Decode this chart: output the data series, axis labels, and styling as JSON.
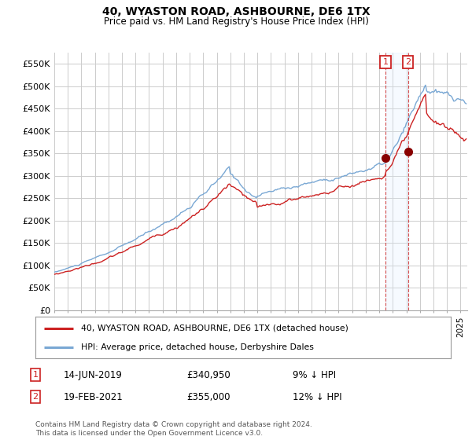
{
  "title": "40, WYASTON ROAD, ASHBOURNE, DE6 1TX",
  "subtitle": "Price paid vs. HM Land Registry's House Price Index (HPI)",
  "ylim": [
    0,
    575000
  ],
  "yticks": [
    0,
    50000,
    100000,
    150000,
    200000,
    250000,
    300000,
    350000,
    400000,
    450000,
    500000,
    550000
  ],
  "ytick_labels": [
    "£0",
    "£50K",
    "£100K",
    "£150K",
    "£200K",
    "£250K",
    "£300K",
    "£350K",
    "£400K",
    "£450K",
    "£500K",
    "£550K"
  ],
  "hpi_color": "#7aa8d4",
  "price_color": "#cc2222",
  "annotation_color": "#cc2222",
  "background_color": "#ffffff",
  "grid_color": "#cccccc",
  "transaction1": {
    "date": "14-JUN-2019",
    "price": 340950,
    "pct": "9%",
    "direction": "↓",
    "label": "1"
  },
  "transaction2": {
    "date": "19-FEB-2021",
    "price": 355000,
    "pct": "12%",
    "direction": "↓",
    "label": "2"
  },
  "legend_line1": "40, WYASTON ROAD, ASHBOURNE, DE6 1TX (detached house)",
  "legend_line2": "HPI: Average price, detached house, Derbyshire Dales",
  "footer": "Contains HM Land Registry data © Crown copyright and database right 2024.\nThis data is licensed under the Open Government Licence v3.0.",
  "ann1_x": 2019.46,
  "ann1_y": 340950,
  "ann2_x": 2021.12,
  "ann2_y": 355000,
  "xlim": [
    1995,
    2025.5
  ],
  "xticks": [
    1995,
    1996,
    1997,
    1998,
    1999,
    2000,
    2001,
    2002,
    2003,
    2004,
    2005,
    2006,
    2007,
    2008,
    2009,
    2010,
    2011,
    2012,
    2013,
    2014,
    2015,
    2016,
    2017,
    2018,
    2019,
    2020,
    2021,
    2022,
    2023,
    2024,
    2025
  ],
  "shade_color": "#ddeeff"
}
